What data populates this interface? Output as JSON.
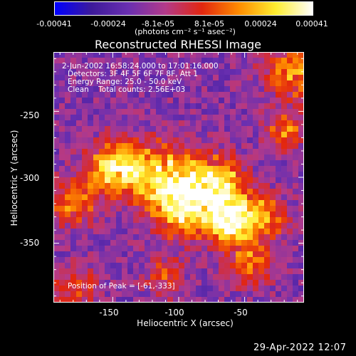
{
  "colorbar": {
    "tick_labels": [
      "-0.00041",
      "-0.00024",
      "-8.1e-05",
      "8.1e-05",
      "0.00024",
      "0.00041"
    ],
    "unit_label": "(photons cm⁻² s⁻¹ asec⁻²)",
    "range": [
      -0.00041,
      0.00041
    ],
    "colors": [
      "#0000ff",
      "#3d1a9a",
      "#6a2fb0",
      "#b33a8a",
      "#e2260f",
      "#ff8c00",
      "#ffee30",
      "#ffffff"
    ]
  },
  "timestamp": "29-Apr-2022 12:07",
  "chart_data": {
    "type": "heatmap",
    "title": "Reconstructed RHESSI Image",
    "xlabel": "Heliocentric X (arcsec)",
    "ylabel": "Heliocentric Y (arcsec)",
    "xlim": [
      -195,
      -5
    ],
    "ylim": [
      -395,
      -205
    ],
    "x_ticks": [
      -150,
      -100,
      -50
    ],
    "y_ticks": [
      -250,
      -300,
      -350
    ],
    "grid": false,
    "annotations": [
      "2-Jun-2002 16:58:24.000 to 17:01:16.000",
      "Detectors: 3F 4F 5F 6F 7F 8F, Att 1",
      "Energy Range: 25.0 - 50.0 keV",
      "Clean    Total counts: 2.56E+03"
    ],
    "peak_label": "Position of Peak = [-61,-333]",
    "peak_position": [
      -61,
      -333
    ],
    "sources": [
      {
        "x": -148,
        "y": -292,
        "sigma": 14,
        "amplitude": 0.85
      },
      {
        "x": -110,
        "y": -300,
        "sigma": 18,
        "amplitude": 0.8
      },
      {
        "x": -68,
        "y": -305,
        "sigma": 14,
        "amplitude": 0.75
      },
      {
        "x": -61,
        "y": -333,
        "sigma": 12,
        "amplitude": 1.0
      },
      {
        "x": -95,
        "y": -325,
        "sigma": 15,
        "amplitude": 0.7
      },
      {
        "x": -180,
        "y": -318,
        "sigma": 12,
        "amplitude": 0.55
      },
      {
        "x": -35,
        "y": -330,
        "sigma": 12,
        "amplitude": 0.55
      },
      {
        "x": -15,
        "y": -220,
        "sigma": 14,
        "amplitude": 0.6
      },
      {
        "x": -20,
        "y": -265,
        "sigma": 10,
        "amplitude": 0.5
      },
      {
        "x": -180,
        "y": -385,
        "sigma": 12,
        "amplitude": 0.45
      },
      {
        "x": -45,
        "y": -365,
        "sigma": 12,
        "amplitude": 0.5
      },
      {
        "x": -110,
        "y": -375,
        "sigma": 10,
        "amplitude": 0.4
      }
    ]
  }
}
